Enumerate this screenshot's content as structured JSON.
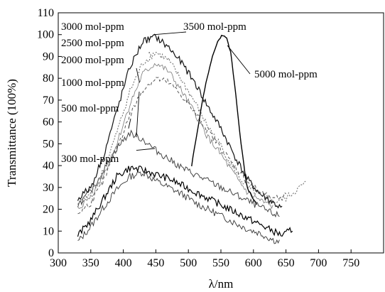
{
  "chart_data": {
    "type": "line",
    "title": "",
    "xlabel": "λ/nm",
    "ylabel": "Transmittance (100%)",
    "xlim": [
      300,
      800
    ],
    "ylim": [
      0,
      110
    ],
    "xticks": [
      300,
      350,
      400,
      450,
      500,
      550,
      600,
      650,
      700,
      750
    ],
    "yticks": [
      0,
      10,
      20,
      30,
      40,
      50,
      60,
      70,
      80,
      90,
      100,
      110
    ],
    "grid": false,
    "legend": "none",
    "annotations": [
      {
        "text": "3000 mol-ppm",
        "series": 4
      },
      {
        "text": "2500 mol-ppm",
        "series": 5
      },
      {
        "text": "2000 mol-ppm",
        "series": 3
      },
      {
        "text": "1000 mol-ppm",
        "series": 2
      },
      {
        "text": "500 mol-ppm",
        "series": 1
      },
      {
        "text": "300 mol-ppm",
        "series": 0
      },
      {
        "text": "3500 mol-ppm",
        "series": 6
      },
      {
        "text": "5000 mol-ppm",
        "series": 7
      }
    ],
    "series": [
      {
        "name": "300 mol-ppm",
        "color": "#333333",
        "dash": "",
        "width": 0.9,
        "x": [
          330,
          350,
          370,
          390,
          410,
          430,
          450,
          470,
          490,
          510,
          530,
          550,
          570,
          590,
          610,
          630,
          640
        ],
        "y": [
          5,
          12,
          21,
          29,
          35,
          37,
          33,
          30,
          27,
          23,
          20,
          17,
          14,
          11,
          9,
          6,
          5
        ]
      },
      {
        "name": "500 mol-ppm",
        "color": "#000000",
        "dash": "",
        "width": 1.2,
        "x": [
          330,
          350,
          370,
          390,
          410,
          430,
          450,
          470,
          490,
          510,
          530,
          550,
          570,
          590,
          610,
          630,
          645,
          660
        ],
        "y": [
          8,
          15,
          25,
          35,
          39,
          38,
          36,
          34,
          31,
          28,
          25,
          22,
          19,
          16,
          13,
          10,
          8,
          11
        ]
      },
      {
        "name": "1000 mol-ppm",
        "color": "#444444",
        "dash": "",
        "width": 1.0,
        "x": [
          330,
          350,
          370,
          390,
          410,
          430,
          450,
          470,
          490,
          510,
          530,
          550,
          570,
          590,
          610,
          630,
          640
        ],
        "y": [
          22,
          28,
          38,
          48,
          55,
          52,
          47,
          43,
          39,
          36,
          33,
          30,
          27,
          24,
          21,
          18,
          17
        ]
      },
      {
        "name": "2000 mol-ppm",
        "color": "#555555",
        "dash": "4,3",
        "width": 1.0,
        "x": [
          330,
          350,
          370,
          390,
          410,
          430,
          450,
          470,
          490,
          510,
          530,
          550,
          570,
          590,
          610,
          630,
          650
        ],
        "y": [
          18,
          23,
          33,
          48,
          63,
          75,
          80,
          78,
          72,
          64,
          56,
          48,
          40,
          33,
          28,
          24,
          27
        ]
      },
      {
        "name": "3000 mol-ppm",
        "color": "#111111",
        "dash": "",
        "width": 1.2,
        "x": [
          330,
          350,
          370,
          390,
          410,
          430,
          450,
          470,
          490,
          510,
          530,
          550,
          570,
          590,
          610,
          630,
          645
        ],
        "y": [
          25,
          30,
          45,
          65,
          85,
          97,
          99,
          94,
          87,
          78,
          67,
          57,
          45,
          34,
          27,
          23,
          20
        ]
      },
      {
        "name": "2500 mol-ppm",
        "color": "#666666",
        "dash": "2,2",
        "width": 1.0,
        "x": [
          330,
          350,
          370,
          390,
          410,
          430,
          450,
          470,
          490,
          510,
          530,
          550,
          570,
          590,
          610,
          630,
          650,
          680
        ],
        "y": [
          22,
          27,
          38,
          55,
          74,
          87,
          92,
          88,
          79,
          69,
          58,
          49,
          38,
          30,
          26,
          23,
          25,
          32
        ]
      },
      {
        "name": "3500 mol-ppm",
        "color": "#777777",
        "dash": "",
        "width": 0.8,
        "x": [
          330,
          350,
          370,
          390,
          410,
          430,
          450,
          470,
          490,
          510,
          530,
          550,
          570,
          590,
          610,
          630
        ],
        "y": [
          20,
          26,
          36,
          50,
          68,
          82,
          87,
          83,
          74,
          64,
          53,
          45,
          36,
          28,
          24,
          21
        ]
      },
      {
        "name": "5000 mol-ppm",
        "color": "#000000",
        "dash": "",
        "width": 1.4,
        "x": [
          505,
          515,
          525,
          535,
          545,
          552,
          558,
          565,
          572,
          580,
          590,
          605
        ],
        "y": [
          40,
          58,
          75,
          88,
          97,
          100,
          99,
          92,
          75,
          52,
          30,
          22
        ]
      }
    ]
  }
}
